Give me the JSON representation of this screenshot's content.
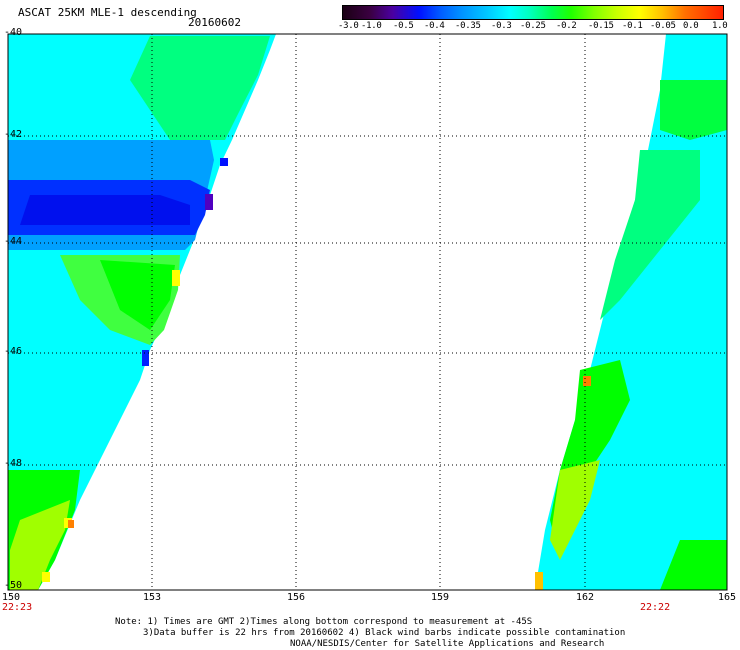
{
  "header": {
    "title": "ASCAT 25KM MLE-1 descending",
    "date": "20160602"
  },
  "colorbar": {
    "labels": [
      "-3.0",
      "-1.0",
      "-0.5",
      "-0.4",
      "-0.35",
      "-0.3",
      "-0.25",
      "-0.2",
      "-0.15",
      "-0.1",
      "-0.05",
      "0.0",
      "1.0"
    ]
  },
  "axes": {
    "lat_labels": [
      "-40",
      "-42",
      "-44",
      "-46",
      "-48",
      "-50"
    ],
    "lon_labels": [
      "150",
      "153",
      "156",
      "159",
      "162",
      "165"
    ],
    "time_left": "22:23",
    "time_right": "22:22"
  },
  "notes": {
    "line1": "Note: 1) Times are GMT 2)Times along bottom correspond to measurement at -45S",
    "line2": "3)Data buffer is 22 hrs from 20160602 4) Black wind barbs indicate possible contamination",
    "line3": "NOAA/NESDIS/Center for Satellite Applications and Research"
  },
  "colors": {
    "cyan": "#00ffff",
    "green": "#00ff00",
    "blue": "#0030ff",
    "yellow": "#ffff00",
    "orange": "#ff8000"
  }
}
